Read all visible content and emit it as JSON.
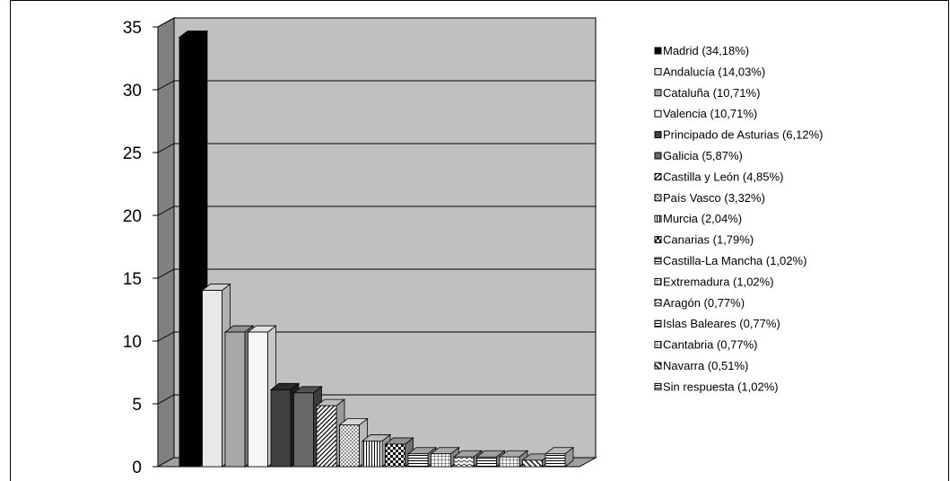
{
  "chart_data": {
    "type": "bar",
    "title": "",
    "xlabel": "",
    "ylabel": "",
    "ylim": [
      0,
      35
    ],
    "yticks": [
      "0",
      "5",
      "10",
      "15",
      "20",
      "25",
      "30",
      "35"
    ],
    "grid": true,
    "legend_position": "right",
    "categories": [
      "Madrid (34,18%)",
      "Andalucía (14,03%)",
      "Cataluña (10,71%)",
      "Valencia (10,71%)",
      "Principado de Asturias (6,12%)",
      "Galicia (5,87%)",
      "Castilla y León (4,85%)",
      "País Vasco (3,32%)",
      "Murcia (2,04%)",
      "Canarias (1,79%)",
      "Castilla-La Mancha (1,02%)",
      "Extremadura (1,02%)",
      "Aragón (0,77%)",
      "Islas Baleares (0,77%)",
      "Cantabria (0,77%)",
      "Navarra (0,51%)",
      "Sin respuesta (1,02%)"
    ],
    "values": [
      34.18,
      14.03,
      10.71,
      10.71,
      6.12,
      5.87,
      4.85,
      3.32,
      2.04,
      1.79,
      1.02,
      1.02,
      0.77,
      0.77,
      0.77,
      0.51,
      1.02
    ],
    "colors": {
      "wall": "#c0c0c0",
      "wall_side": "#808080",
      "floor": "#a0a0a0",
      "gridline": "#000000"
    }
  }
}
